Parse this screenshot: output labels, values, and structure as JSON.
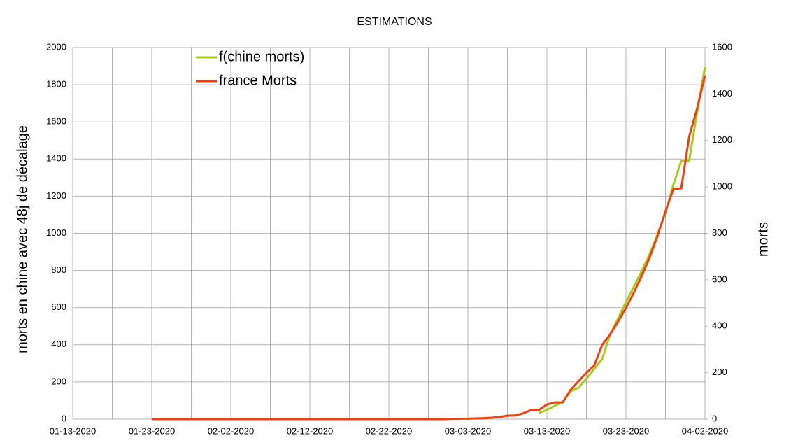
{
  "chart_data": {
    "type": "line",
    "title": "ESTIMATIONS",
    "y_label": "morts en chine avec 48j de décalage",
    "y2_label": "morts",
    "xlim": [
      "01-13-2020",
      "04-02-2020"
    ],
    "xticks": [
      "01-13-2020",
      "01-23-2020",
      "02-02-2020",
      "02-12-2020",
      "02-22-2020",
      "03-03-2020",
      "03-13-2020",
      "03-23-2020",
      "04-02-2020"
    ],
    "xminorticks": [
      "01-18-2020",
      "01-28-2020",
      "02-07-2020",
      "02-17-2020",
      "02-27-2020",
      "03-08-2020",
      "03-18-2020",
      "03-28-2020"
    ],
    "ylim": [
      0,
      2000
    ],
    "yticks": [
      0,
      200,
      400,
      600,
      800,
      1000,
      1200,
      1400,
      1600,
      1800,
      2000
    ],
    "y2lim": [
      0,
      1600
    ],
    "y2ticks": [
      0,
      200,
      400,
      600,
      800,
      1000,
      1200,
      1400,
      1600
    ],
    "grid": true,
    "legend": "top-left",
    "series": [
      {
        "name": "f(chine morts)",
        "color": "#a6c91a",
        "x": [
          "03-12-2020",
          "03-13-2020",
          "03-14-2020",
          "03-15-2020",
          "03-16-2020",
          "03-17-2020",
          "03-18-2020",
          "03-19-2020",
          "03-20-2020",
          "03-21-2020",
          "03-22-2020",
          "03-23-2020",
          "03-24-2020",
          "03-25-2020",
          "03-26-2020",
          "03-27-2020",
          "03-28-2020",
          "03-29-2020",
          "03-30-2020",
          "03-31-2020",
          "04-01-2020",
          "04-02-2020"
        ],
        "values": [
          34,
          50,
          72,
          94,
          150,
          169,
          218,
          271,
          324,
          456,
          542,
          629,
          712,
          798,
          889,
          994,
          1111,
          1262,
          1390,
          1390,
          1653,
          1894
        ]
      },
      {
        "name": "france Morts",
        "color": "#ee4011",
        "axis": "y2",
        "x": [
          "01-23-2020",
          "02-29-2020",
          "03-01-2020",
          "03-02-2020",
          "03-03-2020",
          "03-04-2020",
          "03-05-2020",
          "03-06-2020",
          "03-07-2020",
          "03-08-2020",
          "03-09-2020",
          "03-10-2020",
          "03-11-2020",
          "03-12-2020",
          "03-13-2020",
          "03-14-2020",
          "03-15-2020",
          "03-16-2020",
          "03-17-2020",
          "03-18-2020",
          "03-19-2020",
          "03-20-2020",
          "03-21-2020",
          "03-22-2020",
          "03-23-2020",
          "03-24-2020",
          "03-25-2020",
          "03-26-2020",
          "03-27-2020",
          "03-28-2020",
          "03-29-2020",
          "03-30-2020",
          "03-31-2020",
          "04-01-2020",
          "04-02-2020"
        ],
        "values": [
          0,
          0,
          1,
          2,
          2,
          3,
          4,
          6,
          9,
          15,
          16,
          25,
          40,
          40,
          63,
          72,
          72,
          126,
          163,
          199,
          232,
          320,
          365,
          419,
          479,
          545,
          617,
          696,
          789,
          895,
          991,
          994,
          1217,
          1337,
          1479
        ]
      }
    ]
  }
}
